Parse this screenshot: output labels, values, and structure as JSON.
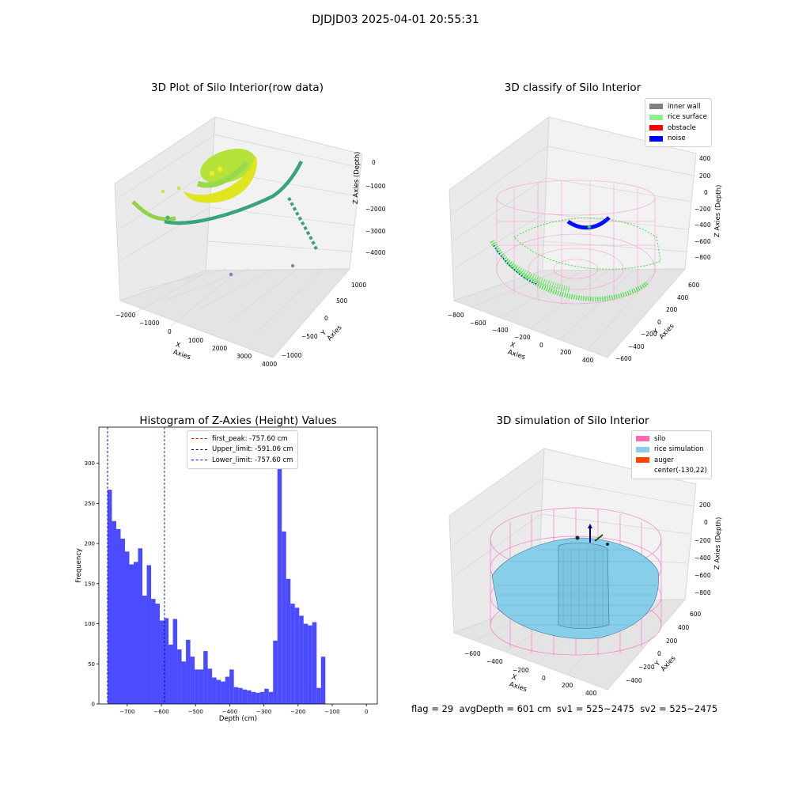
{
  "suptitle": "DJDJD03 2025-04-01 20:55:31",
  "raw_plot": {
    "title": "3D Plot of Silo Interior(row data)",
    "xlabel": "X Axies",
    "ylabel": "Y Axies",
    "zlabel": "Z Axies (Depth)",
    "xticks": [
      "−2000",
      "−1000",
      "0",
      "1000",
      "2000",
      "3000",
      "4000"
    ],
    "yticks": [
      "1000",
      "500",
      "0",
      "−500",
      "−1000"
    ],
    "zticks": [
      "0",
      "−1000",
      "−2000",
      "−3000",
      "−4000"
    ]
  },
  "classify_plot": {
    "title": "3D classify of Silo Interior",
    "xlabel": "X Axies",
    "ylabel": "Y Axies",
    "zlabel": "Z Axies (Depth)",
    "xticks": [
      "−800",
      "−600",
      "−400",
      "−200",
      "0",
      "200",
      "400"
    ],
    "yticks": [
      "600",
      "400",
      "200",
      "0",
      "−200",
      "−400",
      "−600"
    ],
    "zticks": [
      "400",
      "200",
      "0",
      "−200",
      "−400",
      "−600",
      "−800"
    ],
    "legend": [
      {
        "label": "inner wall",
        "color": "#808080"
      },
      {
        "label": "rice surface",
        "color": "#90ee90"
      },
      {
        "label": "obstacle",
        "color": "#ff0000"
      },
      {
        "label": "noise",
        "color": "#0000ff"
      }
    ]
  },
  "sim_plot": {
    "title": "3D simulation of Silo Interior",
    "xlabel": "X Axies",
    "ylabel": "Y Axies",
    "zlabel": "Z Axies (Depth)",
    "xticks": [
      "−600",
      "−400",
      "−200",
      "0",
      "200",
      "400"
    ],
    "yticks": [
      "600",
      "400",
      "200",
      "0",
      "−200",
      "−400"
    ],
    "zticks": [
      "200",
      "0",
      "−200",
      "−400",
      "−600",
      "−800"
    ],
    "legend": [
      {
        "label": "silo",
        "color": "#ff69b4"
      },
      {
        "label": "rice simulation",
        "color": "#87ceeb"
      },
      {
        "label": "auger",
        "color": "#ff4500"
      },
      {
        "label": "center(-130,22)",
        "color": ""
      }
    ]
  },
  "status_text": "flag = 29  avgDepth = 601 cm  sv1 = 525~2475  sv2 = 525~2475",
  "chart_data": {
    "type": "bar",
    "title": "Histogram of Z-Axies (Height) Values",
    "xlabel": "Depth (cm)",
    "ylabel": "Frequency",
    "xlim": [
      -783,
      32
    ],
    "ylim": [
      0,
      345
    ],
    "bar_color": "#0000ff",
    "bin_start": -757.6,
    "bin_width": 12.75,
    "values": [
      267,
      228,
      218,
      206,
      190,
      174,
      177,
      194,
      135,
      173,
      131,
      125,
      104,
      107,
      74,
      106,
      68,
      53,
      80,
      59,
      43,
      43,
      66,
      44,
      33,
      30,
      28,
      34,
      43,
      21,
      20,
      18,
      17,
      15,
      14,
      15,
      19,
      15,
      79,
      329,
      215,
      156,
      125,
      120,
      110,
      100,
      98,
      102,
      20,
      59
    ],
    "x_ticks": [
      -700,
      -600,
      -500,
      -400,
      -300,
      -200,
      -100,
      0
    ],
    "x_tick_labels": [
      "−700",
      "−600",
      "−500",
      "−400",
      "−300",
      "−200",
      "−100",
      "0"
    ],
    "y_ticks": [
      0,
      50,
      100,
      150,
      200,
      250,
      300
    ],
    "y_tick_labels": [
      "0",
      "50",
      "100",
      "150",
      "200",
      "250",
      "300"
    ],
    "vlines": [
      {
        "label": "first_peak: -757.60 cm",
        "x": -757.6,
        "color": "#ff0000"
      },
      {
        "label": "Upper_limit: -591.06 cm",
        "x": -591.06,
        "color": "#00008b"
      },
      {
        "label": "Lower_limit: -757.60 cm",
        "x": -757.6,
        "color": "#0000ff"
      }
    ]
  }
}
